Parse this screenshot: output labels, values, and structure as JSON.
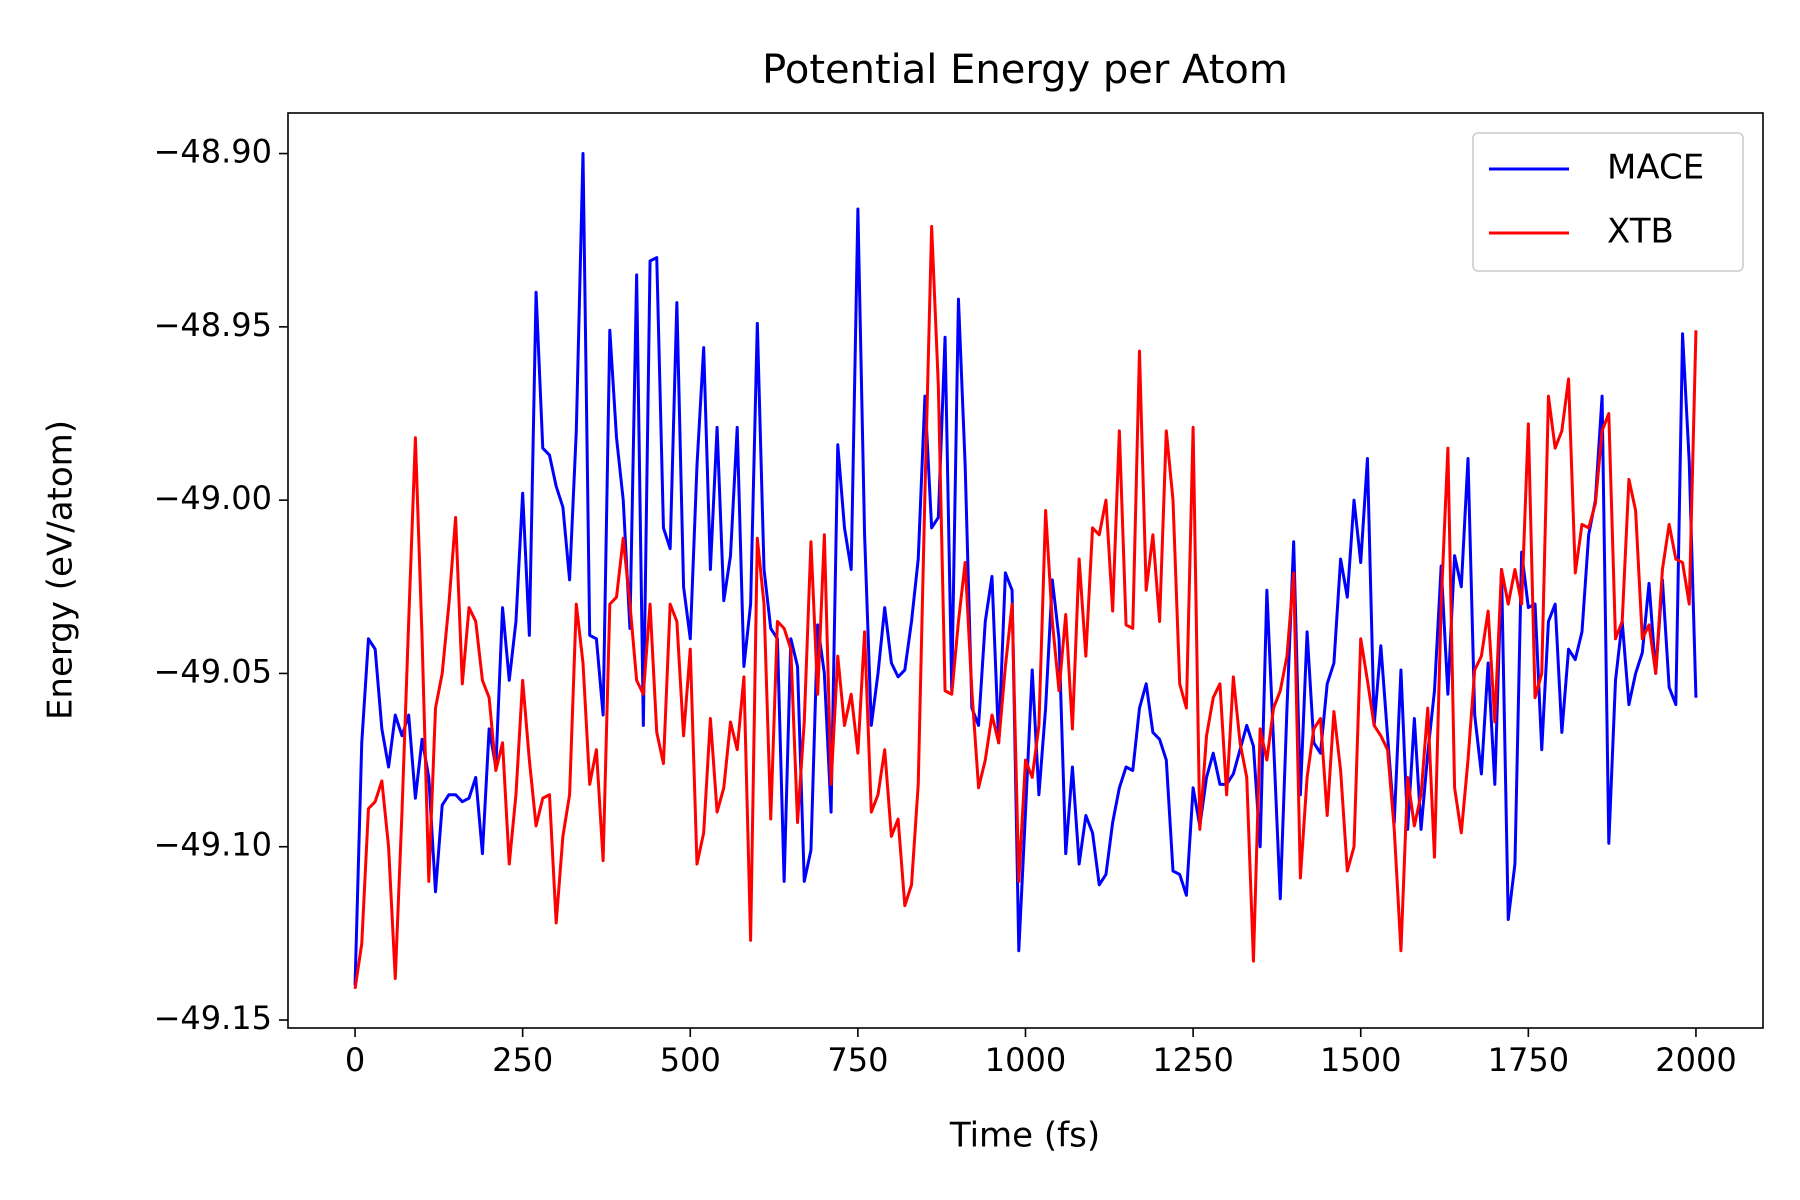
{
  "chart_data": {
    "type": "line",
    "title": "Potential Energy per Atom",
    "xlabel": "Time (fs)",
    "ylabel": "Energy (eV/atom)",
    "x": [
      0,
      10,
      20,
      30,
      40,
      50,
      60,
      70,
      80,
      90,
      100,
      110,
      120,
      130,
      140,
      150,
      160,
      170,
      180,
      190,
      200,
      210,
      220,
      230,
      240,
      250,
      260,
      270,
      280,
      290,
      300,
      310,
      320,
      330,
      340,
      350,
      360,
      370,
      380,
      390,
      400,
      410,
      420,
      430,
      440,
      450,
      460,
      470,
      480,
      490,
      500,
      510,
      520,
      530,
      540,
      550,
      560,
      570,
      580,
      590,
      600,
      610,
      620,
      630,
      640,
      650,
      660,
      670,
      680,
      690,
      700,
      710,
      720,
      730,
      740,
      750,
      760,
      770,
      780,
      790,
      800,
      810,
      820,
      830,
      840,
      850,
      860,
      870,
      880,
      890,
      900,
      910,
      920,
      930,
      940,
      950,
      960,
      970,
      980,
      990,
      1000,
      1010,
      1020,
      1030,
      1040,
      1050,
      1060,
      1070,
      1080,
      1090,
      1100,
      1110,
      1120,
      1130,
      1140,
      1150,
      1160,
      1170,
      1180,
      1190,
      1200,
      1210,
      1220,
      1230,
      1240,
      1250,
      1260,
      1270,
      1280,
      1290,
      1300,
      1310,
      1320,
      1330,
      1340,
      1350,
      1360,
      1370,
      1380,
      1390,
      1400,
      1410,
      1420,
      1430,
      1440,
      1450,
      1460,
      1470,
      1480,
      1490,
      1500,
      1510,
      1520,
      1530,
      1540,
      1550,
      1560,
      1570,
      1580,
      1590,
      1600,
      1610,
      1620,
      1630,
      1640,
      1650,
      1660,
      1670,
      1680,
      1690,
      1700,
      1710,
      1720,
      1730,
      1740,
      1750,
      1760,
      1770,
      1780,
      1790,
      1800,
      1810,
      1820,
      1830,
      1840,
      1850,
      1860,
      1870,
      1880,
      1890,
      1900,
      1910,
      1920,
      1930,
      1940,
      1950,
      1960,
      1970,
      1980,
      1990,
      2000
    ],
    "series": [
      {
        "name": "MACE",
        "color": "#0000ff",
        "values": [
          -49.14,
          -49.07,
          -49.04,
          -49.043,
          -49.066,
          -49.077,
          -49.062,
          -49.068,
          -49.062,
          -49.086,
          -49.069,
          -49.08,
          -49.113,
          -49.088,
          -49.085,
          -49.085,
          -49.087,
          -49.086,
          -49.08,
          -49.102,
          -49.066,
          -49.077,
          -49.031,
          -49.052,
          -49.035,
          -48.998,
          -49.039,
          -48.94,
          -48.985,
          -48.987,
          -48.996,
          -49.002,
          -49.023,
          -48.98,
          -48.9,
          -49.039,
          -49.04,
          -49.062,
          -48.951,
          -48.982,
          -49.0,
          -49.037,
          -48.935,
          -49.065,
          -48.931,
          -48.93,
          -49.008,
          -49.014,
          -48.943,
          -49.025,
          -49.04,
          -48.99,
          -48.956,
          -49.02,
          -48.979,
          -49.029,
          -49.016,
          -48.979,
          -49.048,
          -49.03,
          -48.949,
          -49.02,
          -49.037,
          -49.04,
          -49.11,
          -49.04,
          -49.048,
          -49.11,
          -49.101,
          -49.036,
          -49.05,
          -49.09,
          -48.984,
          -49.008,
          -49.02,
          -48.916,
          -49.01,
          -49.065,
          -49.05,
          -49.031,
          -49.047,
          -49.051,
          -49.049,
          -49.035,
          -49.017,
          -48.97,
          -49.008,
          -49.005,
          -48.953,
          -49.055,
          -48.942,
          -48.99,
          -49.06,
          -49.065,
          -49.035,
          -49.022,
          -49.07,
          -49.021,
          -49.026,
          -49.13,
          -49.09,
          -49.049,
          -49.085,
          -49.06,
          -49.023,
          -49.04,
          -49.102,
          -49.077,
          -49.105,
          -49.091,
          -49.096,
          -49.111,
          -49.108,
          -49.093,
          -49.083,
          -49.077,
          -49.078,
          -49.06,
          -49.053,
          -49.067,
          -49.069,
          -49.075,
          -49.107,
          -49.108,
          -49.114,
          -49.083,
          -49.094,
          -49.08,
          -49.073,
          -49.082,
          -49.082,
          -49.079,
          -49.072,
          -49.065,
          -49.071,
          -49.1,
          -49.026,
          -49.07,
          -49.115,
          -49.06,
          -49.012,
          -49.085,
          -49.038,
          -49.07,
          -49.073,
          -49.053,
          -49.047,
          -49.017,
          -49.028,
          -49.0,
          -49.018,
          -48.988,
          -49.065,
          -49.042,
          -49.068,
          -49.093,
          -49.049,
          -49.095,
          -49.063,
          -49.095,
          -49.073,
          -49.055,
          -49.019,
          -49.056,
          -49.016,
          -49.025,
          -48.988,
          -49.062,
          -49.079,
          -49.047,
          -49.082,
          -49.02,
          -49.121,
          -49.105,
          -49.015,
          -49.031,
          -49.03,
          -49.072,
          -49.035,
          -49.03,
          -49.067,
          -49.043,
          -49.046,
          -49.038,
          -49.01,
          -49.0,
          -48.97,
          -49.099,
          -49.052,
          -49.035,
          -49.059,
          -49.05,
          -49.044,
          -49.024,
          -49.05,
          -49.023,
          -49.054,
          -49.059,
          -48.952,
          -48.989,
          -49.057
        ]
      },
      {
        "name": "XTB",
        "color": "#ff0000",
        "values": [
          -49.141,
          -49.128,
          -49.089,
          -49.087,
          -49.081,
          -49.1,
          -49.138,
          -49.09,
          -49.035,
          -48.982,
          -49.04,
          -49.11,
          -49.06,
          -49.05,
          -49.03,
          -49.005,
          -49.053,
          -49.031,
          -49.035,
          -49.052,
          -49.057,
          -49.078,
          -49.07,
          -49.105,
          -49.085,
          -49.052,
          -49.075,
          -49.094,
          -49.086,
          -49.085,
          -49.122,
          -49.097,
          -49.085,
          -49.03,
          -49.047,
          -49.082,
          -49.072,
          -49.104,
          -49.03,
          -49.028,
          -49.011,
          -49.03,
          -49.052,
          -49.056,
          -49.03,
          -49.067,
          -49.076,
          -49.03,
          -49.035,
          -49.068,
          -49.043,
          -49.105,
          -49.096,
          -49.063,
          -49.09,
          -49.083,
          -49.064,
          -49.072,
          -49.051,
          -49.127,
          -49.011,
          -49.03,
          -49.092,
          -49.035,
          -49.037,
          -49.043,
          -49.093,
          -49.064,
          -49.012,
          -49.056,
          -49.01,
          -49.082,
          -49.045,
          -49.065,
          -49.056,
          -49.073,
          -49.038,
          -49.09,
          -49.085,
          -49.072,
          -49.097,
          -49.092,
          -49.117,
          -49.111,
          -49.082,
          -48.998,
          -48.921,
          -48.967,
          -49.055,
          -49.056,
          -49.035,
          -49.018,
          -49.055,
          -49.083,
          -49.075,
          -49.062,
          -49.07,
          -49.048,
          -49.03,
          -49.11,
          -49.075,
          -49.08,
          -49.065,
          -49.003,
          -49.035,
          -49.055,
          -49.033,
          -49.066,
          -49.017,
          -49.045,
          -49.008,
          -49.01,
          -49.0,
          -49.032,
          -48.98,
          -49.036,
          -49.037,
          -48.957,
          -49.026,
          -49.01,
          -49.035,
          -48.98,
          -49.0,
          -49.053,
          -49.06,
          -48.979,
          -49.095,
          -49.068,
          -49.057,
          -49.053,
          -49.085,
          -49.051,
          -49.07,
          -49.08,
          -49.133,
          -49.066,
          -49.075,
          -49.06,
          -49.055,
          -49.045,
          -49.021,
          -49.109,
          -49.08,
          -49.066,
          -49.063,
          -49.091,
          -49.061,
          -49.078,
          -49.107,
          -49.1,
          -49.04,
          -49.052,
          -49.065,
          -49.068,
          -49.072,
          -49.095,
          -49.13,
          -49.08,
          -49.094,
          -49.085,
          -49.06,
          -49.103,
          -49.03,
          -48.985,
          -49.083,
          -49.096,
          -49.075,
          -49.049,
          -49.045,
          -49.032,
          -49.064,
          -49.02,
          -49.03,
          -49.02,
          -49.03,
          -48.978,
          -49.057,
          -49.05,
          -48.97,
          -48.985,
          -48.98,
          -48.965,
          -49.021,
          -49.007,
          -49.008,
          -49.001,
          -48.98,
          -48.975,
          -49.04,
          -49.035,
          -48.994,
          -49.003,
          -49.04,
          -49.036,
          -49.05,
          -49.02,
          -49.007,
          -49.017,
          -49.018,
          -49.03,
          -48.951
        ]
      }
    ],
    "xlim": [
      -100,
      2100
    ],
    "xticks": [
      0,
      250,
      500,
      750,
      1000,
      1250,
      1500,
      1750,
      2000
    ],
    "ylim": [
      -49.1523,
      -48.8883
    ],
    "yticks": [
      {
        "value": -49.15,
        "label": "−49.15"
      },
      {
        "value": -49.1,
        "label": "−49.10"
      },
      {
        "value": -49.05,
        "label": "−49.05"
      },
      {
        "value": -49.0,
        "label": "−49.00"
      },
      {
        "value": -48.95,
        "label": "−48.95"
      },
      {
        "value": -48.9,
        "label": "−48.90"
      }
    ],
    "grid": false,
    "legend": "upper right"
  }
}
